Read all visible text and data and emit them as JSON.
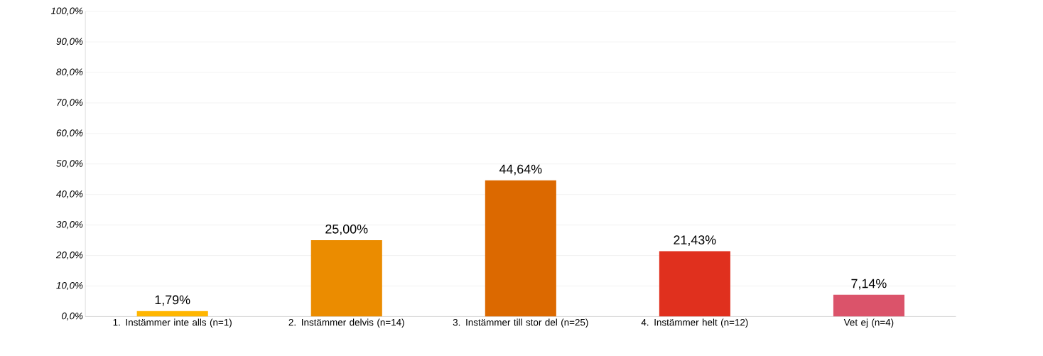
{
  "chart_data": {
    "type": "bar",
    "categories": [
      "1. Instämmer inte alls (n=1)",
      "2. Instämmer delvis (n=14)",
      "3. Instämmer till stor del (n=25)",
      "4. Instämmer helt (n=12)",
      "Vet ej (n=4)"
    ],
    "values": [
      1.79,
      25.0,
      44.64,
      21.43,
      7.14
    ],
    "colors": [
      "#ffb600",
      "#eb8c00",
      "#dc6900",
      "#e0301e",
      "#db536a"
    ],
    "value_labels": [
      "1,79%",
      "25,00%",
      "44,64%",
      "21,43%",
      "7,14%"
    ],
    "ylim": [
      0,
      100
    ],
    "yticks": [
      {
        "value": 0,
        "label": "0,0%"
      },
      {
        "value": 10,
        "label": "10,0%"
      },
      {
        "value": 20,
        "label": "20,0%"
      },
      {
        "value": 30,
        "label": "30,0%"
      },
      {
        "value": 40,
        "label": "40,0%"
      },
      {
        "value": 50,
        "label": "50,0%"
      },
      {
        "value": 60,
        "label": "60,0%"
      },
      {
        "value": 70,
        "label": "70,0%"
      },
      {
        "value": 80,
        "label": "80,0%"
      },
      {
        "value": 90,
        "label": "90,0%"
      },
      {
        "value": 100,
        "label": "100,0%"
      }
    ],
    "grid": "y"
  }
}
